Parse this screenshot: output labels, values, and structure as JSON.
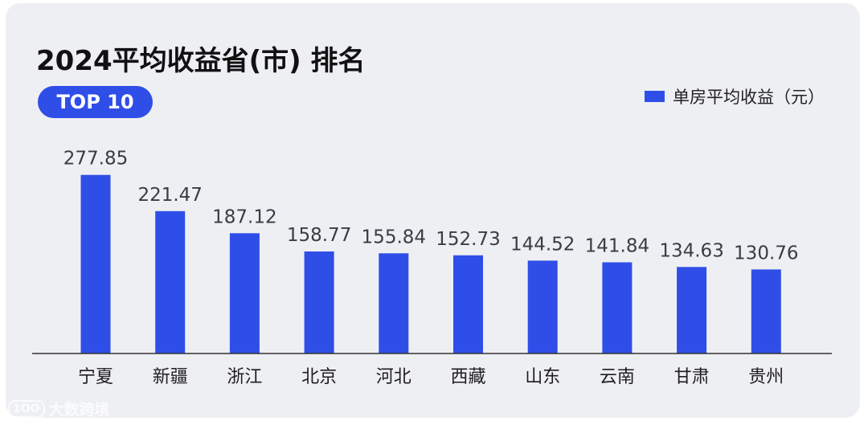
{
  "title": "2024平均收益省(市) 排名",
  "badge": "TOP 10",
  "watermark": {
    "logo": "1OO",
    "text": "大数跨境"
  },
  "colors": {
    "bar": "#2f4ee8",
    "background": "#eeeff3",
    "label": "#3b3b44"
  },
  "chart_data": {
    "type": "bar",
    "title": "2024平均收益省(市) 排名",
    "categories": [
      "宁夏",
      "新疆",
      "浙江",
      "北京",
      "河北",
      "西藏",
      "山东",
      "云南",
      "甘肃",
      "贵州"
    ],
    "series": [
      {
        "name": "单房平均收益（元）",
        "values": [
          277.85,
          221.47,
          187.12,
          158.77,
          155.84,
          152.73,
          144.52,
          141.84,
          134.63,
          130.76
        ]
      }
    ],
    "value_labels": [
      "277.85",
      "221.47",
      "187.12",
      "158.77",
      "155.84",
      "152.73",
      "144.52",
      "141.84",
      "134.63",
      "130.76"
    ],
    "legend_position": "top-right",
    "grid": false
  }
}
